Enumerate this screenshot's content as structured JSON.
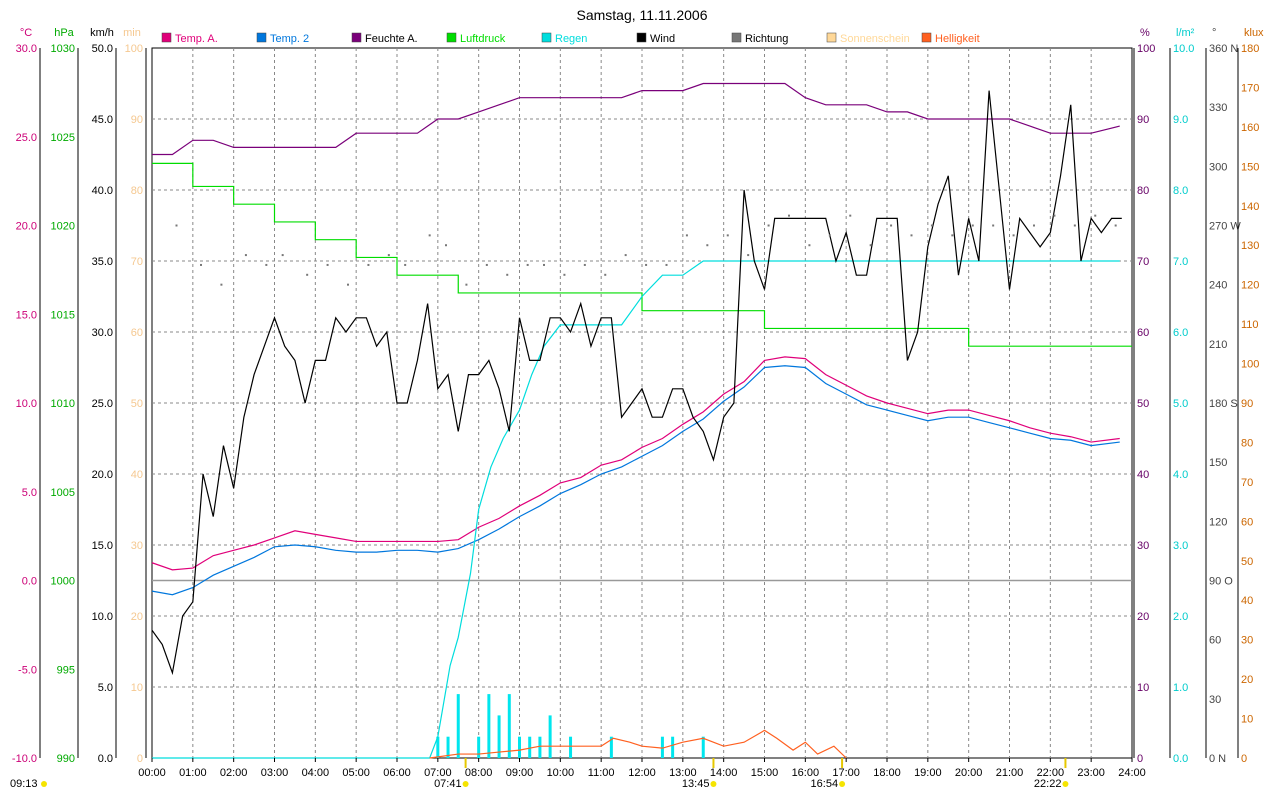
{
  "chart_data": {
    "type": "line",
    "title": "Samstag, 11.11.2006",
    "x_ticks": [
      "00:00",
      "01:00",
      "02:00",
      "03:00",
      "04:00",
      "05:00",
      "06:00",
      "07:00",
      "08:00",
      "09:00",
      "10:00",
      "11:00",
      "12:00",
      "13:00",
      "14:00",
      "15:00",
      "16:00",
      "17:00",
      "18:00",
      "19:00",
      "20:00",
      "21:00",
      "22:00",
      "23:00",
      "24:00"
    ],
    "x_range_hours": [
      0,
      24
    ],
    "grid": true,
    "legend_position": "top",
    "axes": {
      "temp": {
        "unit": "°C",
        "range": [
          -10,
          30
        ],
        "ticks": [
          "-10.0",
          "-5.0",
          "0.0",
          "5.0",
          "10.0",
          "15.0",
          "20.0",
          "25.0",
          "30.0"
        ],
        "color": "#cc0077"
      },
      "hpa": {
        "unit": "hPa",
        "range": [
          990,
          1030
        ],
        "ticks": [
          "990",
          "995",
          "1000",
          "1005",
          "1010",
          "1015",
          "1020",
          "1025",
          "1030"
        ],
        "color": "#00aa00"
      },
      "kmh": {
        "unit": "km/h",
        "range": [
          0,
          50
        ],
        "ticks": [
          "0.0",
          "5.0",
          "10.0",
          "15.0",
          "20.0",
          "25.0",
          "30.0",
          "35.0",
          "40.0",
          "45.0",
          "50.0"
        ],
        "color": "#000000"
      },
      "min": {
        "unit": "min",
        "range": [
          0,
          100
        ],
        "ticks": [
          "0",
          "10",
          "20",
          "30",
          "40",
          "50",
          "60",
          "70",
          "80",
          "90",
          "100"
        ],
        "color": "#f5c890"
      },
      "pct": {
        "unit": "%",
        "range": [
          0,
          100
        ],
        "ticks": [
          "0",
          "10",
          "20",
          "30",
          "40",
          "50",
          "60",
          "70",
          "80",
          "90",
          "100"
        ],
        "color": "#660066"
      },
      "rain": {
        "unit": "l/m²",
        "range": [
          0,
          10
        ],
        "ticks": [
          "0.0",
          "1.0",
          "2.0",
          "3.0",
          "4.0",
          "5.0",
          "6.0",
          "7.0",
          "8.0",
          "9.0",
          "10.0"
        ],
        "color": "#00cccc"
      },
      "dir": {
        "unit": "°",
        "range": [
          0,
          360
        ],
        "ticks": [
          "0 N",
          "30",
          "60",
          "90 O",
          "120",
          "150",
          "180 S",
          "210",
          "240",
          "270 W",
          "300",
          "330",
          "360 N"
        ],
        "color": "#444444"
      },
      "klux": {
        "unit": "klux",
        "range": [
          0,
          180
        ],
        "ticks": [
          "0",
          "10",
          "20",
          "30",
          "40",
          "50",
          "60",
          "70",
          "80",
          "90",
          "100",
          "110",
          "120",
          "130",
          "140",
          "150",
          "160",
          "170",
          "180"
        ],
        "color": "#cc6600"
      }
    },
    "legend": [
      {
        "name": "Temp. A.",
        "color": "#e0007a"
      },
      {
        "name": "Temp. 2",
        "color": "#0077dd"
      },
      {
        "name": "Feuchte A.",
        "color": "#7a007a"
      },
      {
        "name": "Luftdruck",
        "color": "#00dd00"
      },
      {
        "name": "Regen",
        "color": "#00dddd"
      },
      {
        "name": "Wind",
        "color": "#000000"
      },
      {
        "name": "Richtung",
        "color": "#777777"
      },
      {
        "name": "Sonnenschein",
        "color": "#ffd898"
      },
      {
        "name": "Helligkeit",
        "color": "#ff6020"
      }
    ],
    "series": [
      {
        "name": "Temp. A.",
        "axis": "temp",
        "x": [
          0,
          0.5,
          1,
          1.5,
          2,
          2.5,
          3,
          3.5,
          4,
          4.5,
          5,
          5.5,
          6,
          6.5,
          7,
          7.5,
          8,
          8.5,
          9,
          9.5,
          10,
          10.5,
          11,
          11.5,
          12,
          12.5,
          13,
          13.5,
          14,
          14.5,
          15,
          15.5,
          16,
          16.5,
          17,
          17.5,
          18,
          18.5,
          19,
          19.5,
          20,
          20.5,
          21,
          21.5,
          22,
          22.5,
          23,
          23.7
        ],
        "y": [
          1.0,
          0.6,
          0.7,
          1.4,
          1.7,
          2.0,
          2.4,
          2.8,
          2.6,
          2.4,
          2.2,
          2.2,
          2.2,
          2.2,
          2.2,
          2.3,
          3.0,
          3.5,
          4.2,
          4.8,
          5.5,
          5.8,
          6.5,
          6.8,
          7.5,
          8.0,
          8.8,
          9.5,
          10.5,
          11.2,
          12.4,
          12.6,
          12.5,
          11.6,
          11.0,
          10.4,
          10.0,
          9.7,
          9.4,
          9.6,
          9.6,
          9.3,
          9.0,
          8.6,
          8.3,
          8.1,
          7.8,
          8.0
        ]
      },
      {
        "name": "Temp. 2",
        "axis": "temp",
        "x": [
          0,
          0.5,
          1,
          1.5,
          2,
          2.5,
          3,
          3.5,
          4,
          4.5,
          5,
          5.5,
          6,
          6.5,
          7,
          7.5,
          8,
          8.5,
          9,
          9.5,
          10,
          10.5,
          11,
          11.5,
          12,
          12.5,
          13,
          13.5,
          14,
          14.5,
          15,
          15.5,
          16,
          16.5,
          17,
          17.5,
          18,
          18.5,
          19,
          19.5,
          20,
          20.5,
          21,
          21.5,
          22,
          22.5,
          23,
          23.7
        ],
        "y": [
          -0.6,
          -0.8,
          -0.4,
          0.3,
          0.8,
          1.3,
          1.9,
          2.0,
          1.9,
          1.7,
          1.6,
          1.6,
          1.7,
          1.7,
          1.6,
          1.8,
          2.3,
          2.9,
          3.6,
          4.2,
          4.9,
          5.4,
          6.0,
          6.4,
          7.0,
          7.6,
          8.4,
          9.1,
          10.1,
          10.9,
          12.0,
          12.1,
          12.0,
          11.1,
          10.5,
          9.9,
          9.6,
          9.3,
          9.0,
          9.2,
          9.2,
          8.9,
          8.6,
          8.3,
          8.0,
          7.9,
          7.6,
          7.8
        ]
      },
      {
        "name": "Feuchte A.",
        "axis": "pct",
        "x": [
          0,
          0.5,
          1,
          1.5,
          2,
          2.5,
          3,
          3.5,
          4,
          4.5,
          5,
          5.5,
          6,
          6.5,
          7,
          7.5,
          8,
          8.5,
          9,
          9.5,
          10,
          10.5,
          11,
          11.5,
          12,
          12.5,
          13,
          13.5,
          14,
          14.5,
          15,
          15.5,
          16,
          16.5,
          17,
          17.5,
          18,
          18.5,
          19,
          19.5,
          20,
          20.5,
          21,
          21.5,
          22,
          22.5,
          23,
          23.7
        ],
        "y": [
          85,
          85,
          87,
          87,
          86,
          86,
          86,
          86,
          86,
          86,
          88,
          88,
          88,
          88,
          90,
          90,
          91,
          92,
          93,
          93,
          93,
          93,
          93,
          93,
          94,
          94,
          94,
          95,
          95,
          95,
          95,
          95,
          93,
          92,
          92,
          92,
          91,
          91,
          90,
          90,
          90,
          90,
          90,
          89,
          88,
          88,
          88,
          89
        ]
      },
      {
        "name": "Luftdruck",
        "axis": "hpa",
        "x": [
          0,
          0.5,
          1,
          1.5,
          2,
          2.5,
          3,
          3.5,
          4,
          4.5,
          5,
          5.5,
          6,
          6.5,
          7,
          7.5,
          8,
          8.5,
          9,
          9.5,
          10,
          10.5,
          11,
          11.5,
          12,
          12.5,
          13,
          13.5,
          14,
          14.5,
          15,
          15.5,
          16,
          16.5,
          17,
          17.5,
          18,
          18.5,
          19,
          19.5,
          20,
          20.5,
          21,
          21.5,
          22,
          22.5,
          23,
          23.7
        ],
        "y": [
          1023.5,
          1023.5,
          1022.2,
          1022.2,
          1021.2,
          1021.2,
          1020.2,
          1020.2,
          1019.2,
          1019.2,
          1018.2,
          1018.2,
          1017.2,
          1017.2,
          1017.2,
          1016.2,
          1016.2,
          1016.2,
          1016.2,
          1016.2,
          1016.2,
          1016.2,
          1016.2,
          1016.2,
          1015.2,
          1015.2,
          1015.2,
          1015.2,
          1015.2,
          1015.2,
          1014.2,
          1014.2,
          1014.2,
          1014.2,
          1014.2,
          1014.2,
          1014.2,
          1014.2,
          1014.2,
          1014.2,
          1013.2,
          1013.2,
          1013.2,
          1013.2,
          1013.2,
          1013.2,
          1013.2,
          1013.2
        ]
      },
      {
        "name": "Regen",
        "axis": "rain",
        "x": [
          0,
          6,
          6.8,
          7.0,
          7.3,
          7.5,
          7.8,
          8.0,
          8.3,
          8.6,
          9.0,
          9.3,
          9.6,
          10.0,
          10.3,
          10.7,
          11.0,
          11.5,
          12.0,
          12.5,
          13.0,
          13.5,
          14.0,
          15.0,
          17.0,
          20.0,
          23.7
        ],
        "y": [
          0,
          0,
          0,
          0.3,
          1.3,
          1.7,
          2.6,
          3.5,
          4.1,
          4.5,
          4.9,
          5.4,
          5.8,
          6.1,
          6.1,
          6.1,
          6.1,
          6.1,
          6.5,
          6.8,
          6.8,
          7.0,
          7.0,
          7.0,
          7.0,
          7.0,
          7.0
        ]
      },
      {
        "name": "Wind",
        "axis": "kmh",
        "x": [
          0,
          0.25,
          0.5,
          0.75,
          1,
          1.25,
          1.5,
          1.75,
          2,
          2.25,
          2.5,
          2.75,
          3,
          3.25,
          3.5,
          3.75,
          4,
          4.25,
          4.5,
          4.75,
          5,
          5.25,
          5.5,
          5.75,
          6,
          6.25,
          6.5,
          6.75,
          7,
          7.25,
          7.5,
          7.75,
          8,
          8.25,
          8.5,
          8.75,
          9,
          9.25,
          9.5,
          9.75,
          10,
          10.25,
          10.5,
          10.75,
          11,
          11.25,
          11.5,
          11.75,
          12,
          12.25,
          12.5,
          12.75,
          13,
          13.25,
          13.5,
          13.75,
          14,
          14.25,
          14.5,
          14.75,
          15,
          15.25,
          15.5,
          15.75,
          16,
          16.25,
          16.5,
          16.75,
          17,
          17.25,
          17.5,
          17.75,
          18,
          18.25,
          18.5,
          18.75,
          19,
          19.25,
          19.5,
          19.75,
          20,
          20.25,
          20.5,
          20.75,
          21,
          21.25,
          21.5,
          21.75,
          22,
          22.25,
          22.5,
          22.75,
          23,
          23.25,
          23.5,
          23.75
        ],
        "y": [
          9,
          8,
          6,
          10,
          11,
          20,
          17,
          22,
          19,
          24,
          27,
          29,
          31,
          29,
          28,
          25,
          28,
          28,
          31,
          30,
          31,
          31,
          29,
          30,
          25,
          25,
          28,
          32,
          26,
          27,
          23,
          27,
          27,
          28,
          26,
          23,
          31,
          28,
          28,
          31,
          31,
          30,
          32,
          29,
          31,
          31,
          24,
          25,
          26,
          24,
          24,
          26,
          26,
          24,
          23,
          21,
          24,
          25,
          40,
          35,
          33,
          38,
          38,
          38,
          38,
          38,
          38,
          35,
          37,
          34,
          34,
          38,
          38,
          38,
          28,
          30,
          36,
          39,
          41,
          34,
          38,
          35,
          47,
          40,
          33,
          38,
          37,
          36,
          37,
          41,
          46,
          35,
          38,
          37,
          38,
          38
        ]
      },
      {
        "name": "Richtung",
        "axis": "dir",
        "x": [
          0.6,
          1.2,
          1.7,
          2.3,
          2.8,
          3.2,
          3.8,
          4.3,
          4.8,
          5.3,
          5.8,
          6.2,
          6.8,
          7.2,
          7.7,
          8.2,
          8.7,
          9.2,
          9.6,
          10.1,
          10.6,
          11.1,
          11.6,
          12.1,
          12.6,
          13.1,
          13.6,
          14.1,
          14.6,
          15.1,
          15.6,
          16.1,
          16.6,
          17.1,
          17.6,
          18.1,
          18.6,
          19.1,
          19.6,
          20.1,
          20.6,
          21.1,
          21.6,
          22.1,
          22.6,
          23.1,
          23.6
        ],
        "y": [
          270,
          250,
          240,
          255,
          250,
          255,
          245,
          250,
          240,
          250,
          255,
          250,
          265,
          260,
          240,
          250,
          245,
          250,
          250,
          245,
          250,
          245,
          255,
          250,
          250,
          265,
          260,
          265,
          255,
          270,
          275,
          260,
          265,
          275,
          260,
          270,
          265,
          270,
          265,
          270,
          270,
          265,
          270,
          275,
          270,
          275,
          270
        ]
      },
      {
        "name": "Helligkeit",
        "axis": "klux",
        "x": [
          6.8,
          7.5,
          8.0,
          8.5,
          9.0,
          9.5,
          10.0,
          10.5,
          11.0,
          11.3,
          11.7,
          12.0,
          12.5,
          13.0,
          13.5,
          14.0,
          14.5,
          15.0,
          15.3,
          15.7,
          16.0,
          16.3,
          16.7,
          17.0
        ],
        "y": [
          0,
          1,
          1,
          1.5,
          2,
          3,
          3,
          3,
          3,
          5,
          4,
          3,
          2.5,
          4,
          5,
          3,
          4,
          7,
          5,
          2,
          4,
          1,
          3,
          0
        ]
      }
    ],
    "rain_bars": {
      "axis": "rain",
      "x": [
        7.0,
        7.25,
        7.5,
        8.0,
        8.25,
        8.5,
        8.75,
        9.0,
        9.25,
        9.5,
        9.75,
        10.25,
        11.25,
        12.5,
        12.75,
        13.5
      ],
      "y": [
        0.3,
        0.3,
        0.9,
        0.3,
        0.9,
        0.6,
        0.9,
        0.3,
        0.3,
        0.3,
        0.6,
        0.3,
        0.3,
        0.3,
        0.3,
        0.3
      ]
    },
    "sun_markers": [
      {
        "label": "07:41",
        "time": 7.68
      },
      {
        "label": "13:45",
        "time": 13.75
      },
      {
        "label": "16:54",
        "time": 16.9
      },
      {
        "label": "22:22",
        "time": 22.37
      },
      {
        "label": "09:13",
        "time": 0
      }
    ],
    "zero_line_temp": 0
  }
}
